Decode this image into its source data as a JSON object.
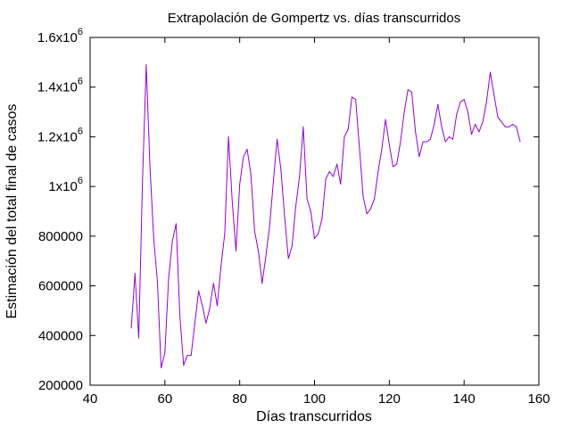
{
  "chart_data": {
    "type": "line",
    "title": "Extrapolación de Gompertz vs. días transcurridos",
    "xlabel": "Días transcurridos",
    "ylabel": "Estimación del total final de casos",
    "xlim": [
      40,
      160
    ],
    "ylim": [
      200000,
      1600000
    ],
    "grid": false,
    "legend": "none",
    "line_color": "#9400d3",
    "x_ticks": [
      {
        "value": 40,
        "label": "40"
      },
      {
        "value": 60,
        "label": "60"
      },
      {
        "value": 80,
        "label": "80"
      },
      {
        "value": 100,
        "label": "100"
      },
      {
        "value": 120,
        "label": "120"
      },
      {
        "value": 140,
        "label": "140"
      },
      {
        "value": 160,
        "label": "160"
      }
    ],
    "y_ticks": [
      {
        "value": 200000,
        "label": "200000",
        "base": "",
        "exp": ""
      },
      {
        "value": 400000,
        "label": "400000",
        "base": "",
        "exp": ""
      },
      {
        "value": 600000,
        "label": "600000",
        "base": "",
        "exp": ""
      },
      {
        "value": 800000,
        "label": "800000",
        "base": "",
        "exp": ""
      },
      {
        "value": 1000000,
        "label": "",
        "base": "1x10",
        "exp": "6"
      },
      {
        "value": 1200000,
        "label": "",
        "base": "1.2x10",
        "exp": "6"
      },
      {
        "value": 1400000,
        "label": "",
        "base": "1.4x10",
        "exp": "6"
      },
      {
        "value": 1600000,
        "label": "",
        "base": "1.6x10",
        "exp": "6"
      }
    ],
    "x": [
      51,
      52,
      53,
      54,
      55,
      56,
      57,
      58,
      59,
      60,
      61,
      62,
      63,
      64,
      65,
      66,
      67,
      68,
      69,
      70,
      71,
      72,
      73,
      74,
      75,
      76,
      77,
      78,
      79,
      80,
      81,
      82,
      83,
      84,
      85,
      86,
      87,
      88,
      89,
      90,
      91,
      92,
      93,
      94,
      95,
      96,
      97,
      98,
      99,
      100,
      101,
      102,
      103,
      104,
      105,
      106,
      107,
      108,
      109,
      110,
      111,
      112,
      113,
      114,
      115,
      116,
      117,
      118,
      119,
      120,
      121,
      122,
      123,
      124,
      125,
      126,
      127,
      128,
      129,
      130,
      131,
      132,
      133,
      134,
      135,
      136,
      137,
      138,
      139,
      140,
      141,
      142,
      143,
      144,
      145,
      146,
      147,
      148,
      149,
      150,
      151,
      152,
      153,
      154,
      155
    ],
    "y": [
      430000,
      650000,
      390000,
      1020000,
      1490000,
      1080000,
      790000,
      620000,
      270000,
      330000,
      630000,
      780000,
      850000,
      480000,
      280000,
      320000,
      320000,
      450000,
      580000,
      520000,
      450000,
      510000,
      610000,
      520000,
      680000,
      810000,
      1200000,
      940000,
      740000,
      1010000,
      1120000,
      1150000,
      1050000,
      820000,
      740000,
      610000,
      720000,
      840000,
      1020000,
      1190000,
      1070000,
      880000,
      710000,
      760000,
      920000,
      1040000,
      1240000,
      950000,
      900000,
      790000,
      810000,
      870000,
      1030000,
      1060000,
      1040000,
      1090000,
      1010000,
      1200000,
      1230000,
      1360000,
      1350000,
      1160000,
      960000,
      890000,
      910000,
      950000,
      1060000,
      1150000,
      1270000,
      1170000,
      1080000,
      1090000,
      1180000,
      1300000,
      1390000,
      1380000,
      1220000,
      1120000,
      1180000,
      1180000,
      1190000,
      1250000,
      1330000,
      1240000,
      1180000,
      1200000,
      1190000,
      1290000,
      1340000,
      1350000,
      1300000,
      1210000,
      1250000,
      1220000,
      1260000,
      1340000,
      1460000,
      1370000,
      1280000,
      1260000,
      1240000,
      1240000,
      1250000,
      1240000,
      1180000
    ]
  }
}
